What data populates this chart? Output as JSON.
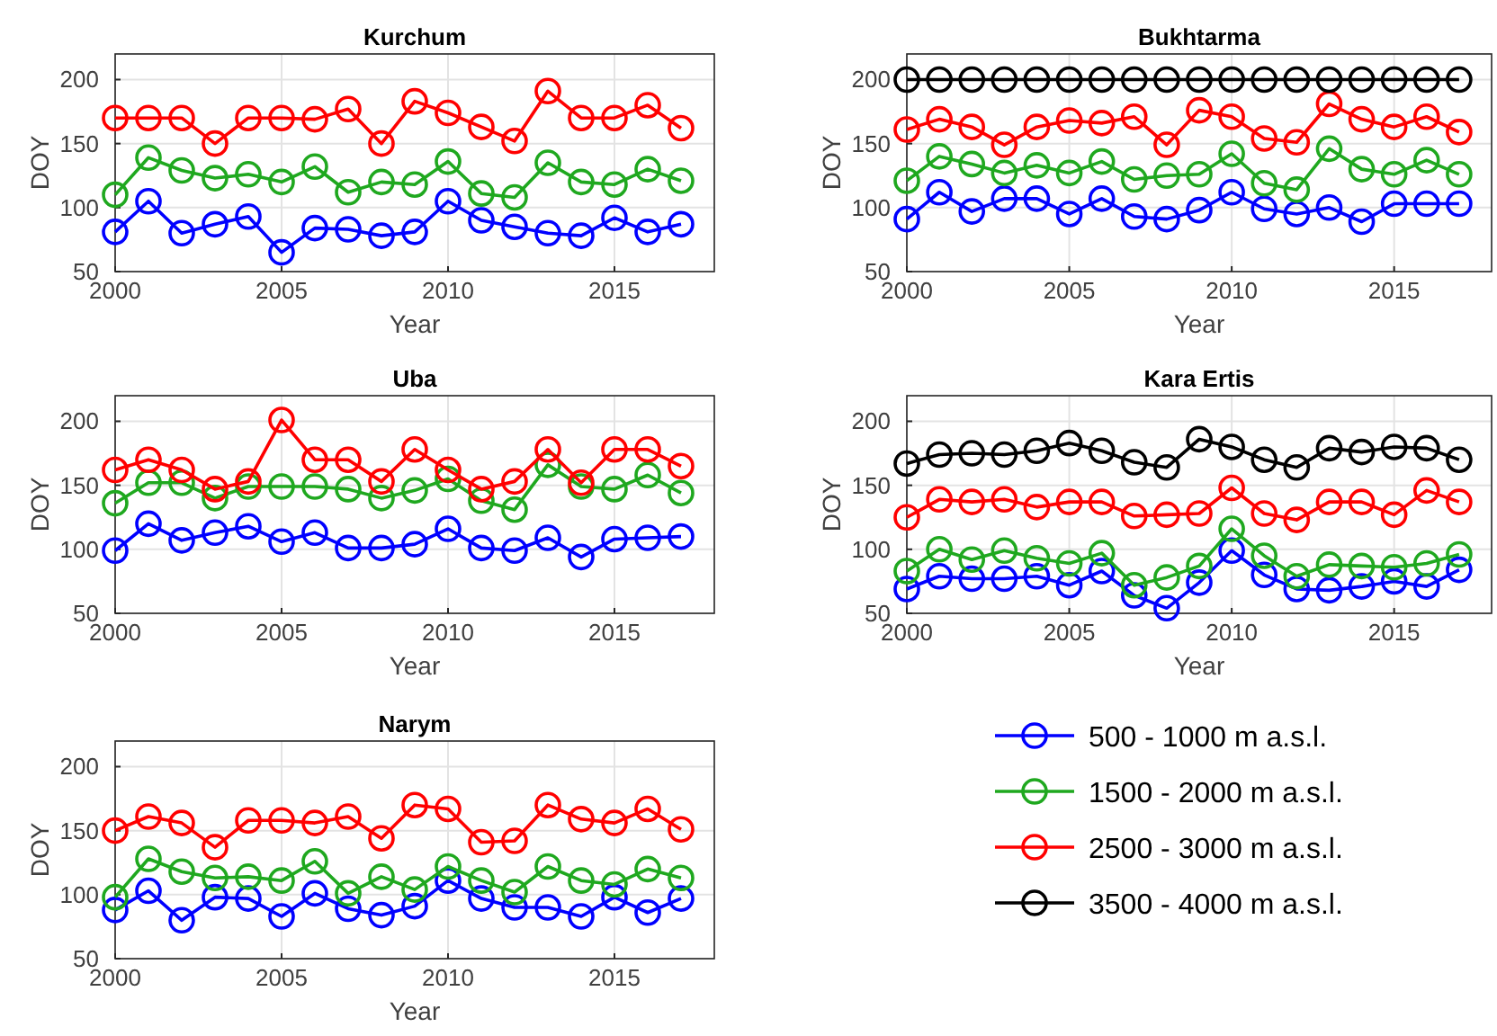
{
  "chart_data": [
    {
      "type": "line",
      "title": "Kurchum",
      "xlabel": "Year",
      "ylabel": "DOY",
      "x": [
        2000,
        2001,
        2002,
        2003,
        2004,
        2005,
        2006,
        2007,
        2008,
        2009,
        2010,
        2011,
        2012,
        2013,
        2014,
        2015,
        2016,
        2017
      ],
      "xlim": [
        2000,
        2018
      ],
      "ylim": [
        50,
        220
      ],
      "xticks": [
        2000,
        2005,
        2010,
        2015
      ],
      "yticks": [
        50,
        100,
        150,
        200
      ],
      "grid": true,
      "marker": "circle",
      "line_style": "solid",
      "legend": false,
      "series": [
        {
          "color": "#0000ff",
          "values": [
            81,
            105,
            80,
            87,
            93,
            65,
            84,
            83,
            78,
            81,
            105,
            90,
            85,
            80,
            78,
            92,
            81,
            87
          ]
        },
        {
          "color": "#1fa81f",
          "values": [
            110,
            139,
            129,
            123,
            126,
            120,
            132,
            112,
            120,
            118,
            136,
            111,
            108,
            135,
            120,
            118,
            130,
            121
          ]
        },
        {
          "color": "#ff0000",
          "values": [
            170,
            170,
            170,
            150,
            170,
            170,
            169,
            177,
            150,
            183,
            174,
            163,
            152,
            191,
            170,
            170,
            180,
            162
          ]
        }
      ]
    },
    {
      "type": "line",
      "title": "Bukhtarma",
      "xlabel": "Year",
      "ylabel": "DOY",
      "x": [
        2000,
        2001,
        2002,
        2003,
        2004,
        2005,
        2006,
        2007,
        2008,
        2009,
        2010,
        2011,
        2012,
        2013,
        2014,
        2015,
        2016,
        2017
      ],
      "xlim": [
        2000,
        2018
      ],
      "ylim": [
        50,
        220
      ],
      "xticks": [
        2000,
        2005,
        2010,
        2015
      ],
      "yticks": [
        50,
        100,
        150,
        200
      ],
      "grid": true,
      "marker": "circle",
      "line_style": "solid",
      "legend": false,
      "series": [
        {
          "color": "#0000ff",
          "values": [
            91,
            112,
            97,
            107,
            107,
            95,
            107,
            93,
            91,
            98,
            112,
            99,
            95,
            100,
            89,
            103,
            103,
            103
          ]
        },
        {
          "color": "#1fa81f",
          "values": [
            121,
            140,
            134,
            127,
            133,
            127,
            136,
            122,
            125,
            126,
            142,
            119,
            114,
            146,
            130,
            126,
            137,
            126
          ]
        },
        {
          "color": "#ff0000",
          "values": [
            161,
            169,
            163,
            149,
            163,
            168,
            166,
            171,
            149,
            176,
            171,
            154,
            151,
            181,
            169,
            163,
            171,
            159
          ]
        },
        {
          "color": "#000000",
          "values": [
            200,
            200,
            200,
            200,
            200,
            200,
            200,
            200,
            200,
            200,
            200,
            200,
            200,
            200,
            200,
            200,
            200,
            200
          ]
        }
      ]
    },
    {
      "type": "line",
      "title": "Uba",
      "xlabel": "Year",
      "ylabel": "DOY",
      "x": [
        2000,
        2001,
        2002,
        2003,
        2004,
        2005,
        2006,
        2007,
        2008,
        2009,
        2010,
        2011,
        2012,
        2013,
        2014,
        2015,
        2016,
        2017
      ],
      "xlim": [
        2000,
        2018
      ],
      "ylim": [
        50,
        220
      ],
      "xticks": [
        2000,
        2005,
        2010,
        2015
      ],
      "yticks": [
        50,
        100,
        150,
        200
      ],
      "grid": true,
      "marker": "circle",
      "line_style": "solid",
      "legend": false,
      "series": [
        {
          "color": "#0000ff",
          "values": [
            99,
            120,
            107,
            113,
            118,
            106,
            113,
            101,
            101,
            104,
            116,
            101,
            99,
            109,
            94,
            108,
            109,
            110
          ]
        },
        {
          "color": "#1fa81f",
          "values": [
            136,
            152,
            152,
            140,
            149,
            149,
            149,
            147,
            140,
            146,
            155,
            138,
            131,
            166,
            149,
            147,
            158,
            144
          ]
        },
        {
          "color": "#ff0000",
          "values": [
            162,
            170,
            162,
            147,
            153,
            201,
            170,
            170,
            153,
            178,
            162,
            147,
            153,
            178,
            152,
            178,
            178,
            165
          ]
        }
      ]
    },
    {
      "type": "line",
      "title": "Kara Ertis",
      "xlabel": "Year",
      "ylabel": "DOY",
      "x": [
        2000,
        2001,
        2002,
        2003,
        2004,
        2005,
        2006,
        2007,
        2008,
        2009,
        2010,
        2011,
        2012,
        2013,
        2014,
        2015,
        2016,
        2017
      ],
      "xlim": [
        2000,
        2018
      ],
      "ylim": [
        50,
        220
      ],
      "xticks": [
        2000,
        2005,
        2010,
        2015
      ],
      "yticks": [
        50,
        100,
        150,
        200
      ],
      "grid": true,
      "marker": "circle",
      "line_style": "solid",
      "legend": "bottom",
      "series": [
        {
          "name": "500 - 1000 m a.s.l.",
          "color": "#0000ff",
          "values": [
            69,
            79,
            77,
            77,
            79,
            72,
            83,
            64,
            54,
            74,
            99,
            80,
            69,
            68,
            71,
            75,
            71,
            84
          ]
        },
        {
          "name": "1500 - 2000 m a.s.l.",
          "color": "#1fa81f",
          "values": [
            83,
            100,
            92,
            99,
            93,
            89,
            97,
            72,
            78,
            87,
            116,
            95,
            79,
            88,
            87,
            86,
            89,
            96
          ]
        },
        {
          "name": "2500 - 3000 m a.s.l.",
          "color": "#ff0000",
          "values": [
            125,
            139,
            137,
            139,
            133,
            137,
            137,
            126,
            127,
            128,
            148,
            128,
            123,
            137,
            137,
            127,
            146,
            137
          ]
        },
        {
          "name": "3500 - 4000 m a.s.l.",
          "color": "#000000",
          "values": [
            167,
            174,
            175,
            174,
            177,
            183,
            177,
            168,
            164,
            186,
            180,
            170,
            164,
            179,
            176,
            180,
            179,
            170
          ]
        }
      ]
    },
    {
      "type": "line",
      "title": "Narym",
      "xlabel": "Year",
      "ylabel": "DOY",
      "x": [
        2000,
        2001,
        2002,
        2003,
        2004,
        2005,
        2006,
        2007,
        2008,
        2009,
        2010,
        2011,
        2012,
        2013,
        2014,
        2015,
        2016,
        2017
      ],
      "xlim": [
        2000,
        2018
      ],
      "ylim": [
        50,
        220
      ],
      "xticks": [
        2000,
        2005,
        2010,
        2015
      ],
      "yticks": [
        50,
        100,
        150,
        200
      ],
      "grid": true,
      "marker": "circle",
      "line_style": "solid",
      "legend": false,
      "series": [
        {
          "color": "#0000ff",
          "values": [
            88,
            103,
            80,
            98,
            97,
            83,
            101,
            89,
            84,
            91,
            111,
            97,
            90,
            90,
            83,
            98,
            86,
            97
          ]
        },
        {
          "color": "#1fa81f",
          "values": [
            98,
            128,
            118,
            113,
            114,
            111,
            126,
            101,
            114,
            104,
            122,
            111,
            102,
            122,
            111,
            108,
            120,
            113
          ]
        },
        {
          "color": "#ff0000",
          "values": [
            150,
            161,
            156,
            137,
            158,
            158,
            156,
            161,
            144,
            170,
            167,
            141,
            142,
            170,
            159,
            156,
            167,
            151
          ]
        }
      ]
    }
  ]
}
